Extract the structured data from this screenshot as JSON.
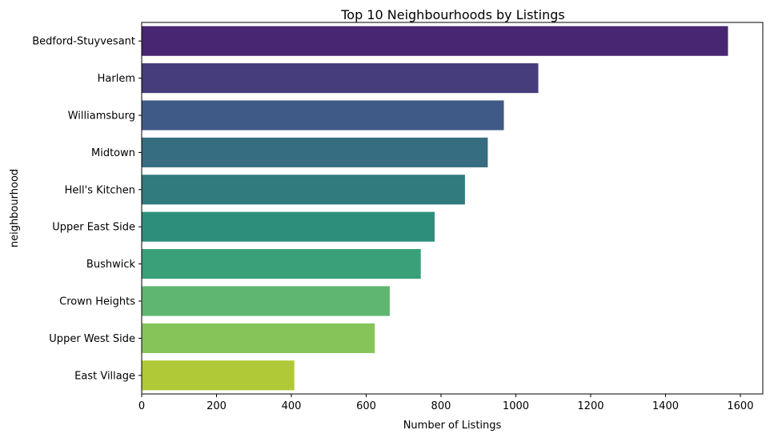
{
  "chart_data": {
    "type": "bar",
    "orientation": "horizontal",
    "title": "Top 10 Neighbourhoods by Listings",
    "xlabel": "Number of Listings",
    "ylabel": "neighbourhood",
    "xlim": [
      0,
      1660
    ],
    "xticks": [
      0,
      200,
      400,
      600,
      800,
      1000,
      1200,
      1400,
      1600
    ],
    "grid": false,
    "legend": "none",
    "palette": "viridis",
    "categories": [
      "Bedford-Stuyvesant",
      "Harlem",
      "Williamsburg",
      "Midtown",
      "Hell's Kitchen",
      "Upper East Side",
      "Bushwick",
      "Crown Heights",
      "Upper West Side",
      "East Village"
    ],
    "values": [
      1567,
      1060,
      968,
      925,
      864,
      783,
      746,
      663,
      623,
      408
    ],
    "colors": [
      "#482671",
      "#463d7c",
      "#3f5a87",
      "#366d80",
      "#317a7d",
      "#2d8e7c",
      "#3aa07a",
      "#5fb670",
      "#86c45a",
      "#b0c936"
    ]
  }
}
